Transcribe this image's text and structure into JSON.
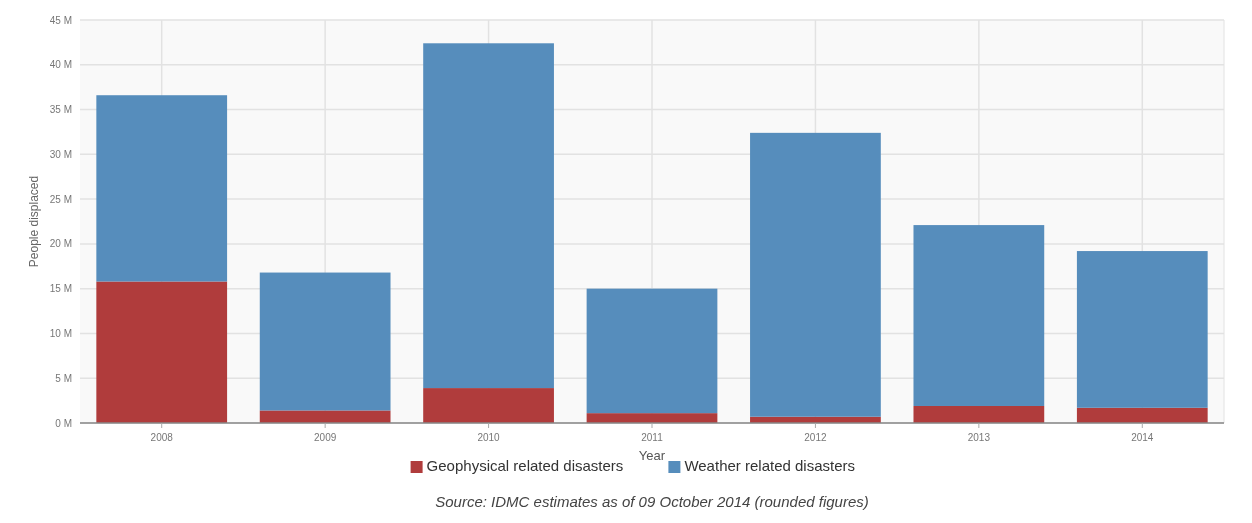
{
  "chart_data": {
    "type": "bar",
    "stacked": true,
    "xlabel": "Year",
    "ylabel": "People displaced",
    "categories": [
      "2008",
      "2009",
      "2010",
      "2011",
      "2012",
      "2013",
      "2014"
    ],
    "series": [
      {
        "name": "Geophysical related disasters",
        "color": "#b03c3c",
        "values": [
          15.8,
          1.4,
          3.9,
          1.1,
          0.7,
          1.9,
          1.7
        ]
      },
      {
        "name": "Weather related disasters",
        "color": "#568dbc",
        "values": [
          20.8,
          15.4,
          38.5,
          13.9,
          31.7,
          20.2,
          17.5
        ]
      }
    ],
    "ylim": [
      0,
      45
    ],
    "yticks": [
      {
        "value": 0,
        "label": "0 M"
      },
      {
        "value": 5,
        "label": "5 M"
      },
      {
        "value": 10,
        "label": "10 M"
      },
      {
        "value": 15,
        "label": "15 M"
      },
      {
        "value": 20,
        "label": "20 M"
      },
      {
        "value": 25,
        "label": "25 M"
      },
      {
        "value": 30,
        "label": "30 M"
      },
      {
        "value": 35,
        "label": "35 M"
      },
      {
        "value": 40,
        "label": "40 M"
      },
      {
        "value": 45,
        "label": "45 M"
      }
    ],
    "grid": true,
    "legend": "bottom",
    "annotations": [
      "Source: IDMC estimates as of 09 October 2014 (rounded figures)"
    ]
  }
}
